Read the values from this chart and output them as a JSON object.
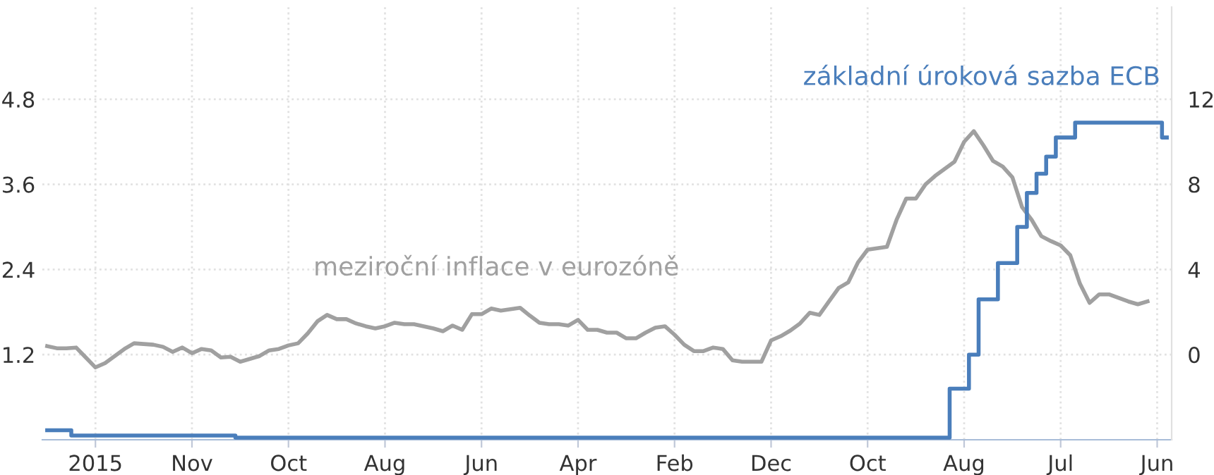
{
  "chart_data": {
    "type": "line",
    "categories": [
      null,
      null,
      null,
      null,
      null,
      "2015",
      null,
      null,
      null,
      null,
      null,
      null,
      null,
      null,
      null,
      "Nov",
      null,
      null,
      null,
      null,
      null,
      null,
      null,
      null,
      null,
      "Oct",
      null,
      null,
      null,
      null,
      null,
      null,
      null,
      null,
      null,
      "Aug",
      null,
      null,
      null,
      null,
      null,
      null,
      null,
      null,
      null,
      "Jun",
      null,
      null,
      null,
      null,
      null,
      null,
      null,
      null,
      null,
      "Apr",
      null,
      null,
      null,
      null,
      null,
      null,
      null,
      null,
      null,
      "Feb",
      null,
      null,
      null,
      null,
      null,
      null,
      null,
      null,
      null,
      "Dec",
      null,
      null,
      null,
      null,
      null,
      null,
      null,
      null,
      null,
      "Oct",
      null,
      null,
      null,
      null,
      null,
      null,
      null,
      null,
      null,
      "Aug",
      null,
      null,
      null,
      null,
      null,
      null,
      null,
      null,
      null,
      "Jul",
      null,
      null,
      null,
      null,
      null,
      null,
      null,
      null,
      null,
      "Jun",
      null
    ],
    "ylim": [
      0,
      6.1
    ],
    "yticks": [
      1.2,
      2.4,
      3.6,
      4.8
    ],
    "y2lim": [
      -4,
      16.33
    ],
    "y2ticks": [
      0,
      4,
      8,
      12
    ],
    "grid": true,
    "series": [
      {
        "name": "meziroční inflace v eurozóně",
        "color": "#a0a0a0",
        "values": [
          1.32,
          1.29,
          1.29,
          1.3,
          1.16,
          1.02,
          1.08,
          1.18,
          1.28,
          1.36,
          1.35,
          1.34,
          1.31,
          1.24,
          1.3,
          1.22,
          1.28,
          1.26,
          1.16,
          1.17,
          1.1,
          1.14,
          1.18,
          1.26,
          1.28,
          1.33,
          1.36,
          1.5,
          1.67,
          1.76,
          1.7,
          1.7,
          1.64,
          1.6,
          1.57,
          1.6,
          1.65,
          1.63,
          1.63,
          1.6,
          1.57,
          1.53,
          1.61,
          1.55,
          1.77,
          1.77,
          1.85,
          1.82,
          1.84,
          1.86,
          1.75,
          1.65,
          1.63,
          1.63,
          1.61,
          1.69,
          1.55,
          1.55,
          1.51,
          1.51,
          1.43,
          1.43,
          1.51,
          1.58,
          1.6,
          1.48,
          1.34,
          1.25,
          1.25,
          1.3,
          1.28,
          1.12,
          1.1,
          1.1,
          1.1,
          1.4,
          1.46,
          1.54,
          1.64,
          1.79,
          1.76,
          1.95,
          2.14,
          2.22,
          2.5,
          2.68,
          2.7,
          2.72,
          3.1,
          3.4,
          3.4,
          3.6,
          3.72,
          3.82,
          3.92,
          4.2,
          4.35,
          4.15,
          3.93,
          3.85,
          3.7,
          3.28,
          3.1,
          2.87,
          2.8,
          2.74,
          2.6,
          2.2,
          1.93,
          2.05,
          2.05,
          2.0,
          1.95,
          1.91,
          1.95,
          null,
          null
        ]
      },
      {
        "name": "základní úroková sazba ECB",
        "color": "#4a7ebb",
        "type": "step",
        "axis": "y2",
        "values": [
          -3.55,
          -3.55,
          -3.55,
          -3.8,
          -3.8,
          -3.8,
          -3.8,
          -3.8,
          -3.8,
          -3.8,
          -3.8,
          -3.8,
          -3.8,
          -3.8,
          -3.8,
          -3.8,
          -3.8,
          -3.8,
          -3.8,
          -3.8,
          -3.9,
          -3.9,
          -3.9,
          -3.9,
          -3.9,
          -3.9,
          -3.9,
          -3.9,
          -3.9,
          -3.9,
          -3.9,
          -3.9,
          -3.9,
          -3.9,
          -3.9,
          -3.9,
          -3.9,
          -3.9,
          -3.9,
          -3.9,
          -3.9,
          -3.9,
          -3.9,
          -3.9,
          -3.9,
          -3.9,
          -3.9,
          -3.9,
          -3.9,
          -3.9,
          -3.9,
          -3.9,
          -3.9,
          -3.9,
          -3.9,
          -3.9,
          -3.9,
          -3.9,
          -3.9,
          -3.9,
          -3.9,
          -3.9,
          -3.9,
          -3.9,
          -3.9,
          -3.9,
          -3.9,
          -3.9,
          -3.9,
          -3.9,
          -3.9,
          -3.9,
          -3.9,
          -3.9,
          -3.9,
          -3.9,
          -3.9,
          -3.9,
          -3.9,
          -3.9,
          -3.9,
          -3.9,
          -3.9,
          -3.9,
          -3.9,
          -3.9,
          -3.9,
          -3.9,
          -3.9,
          -3.9,
          -3.9,
          -3.9,
          -3.9,
          -3.9,
          -1.6,
          -1.6,
          0.0,
          2.6,
          2.6,
          4.3,
          4.3,
          6.0,
          7.6,
          8.5,
          9.3,
          10.2,
          10.2,
          10.9,
          10.9,
          10.9,
          10.9,
          10.9,
          10.9,
          10.9,
          10.9,
          10.9,
          10.2
        ]
      }
    ]
  }
}
